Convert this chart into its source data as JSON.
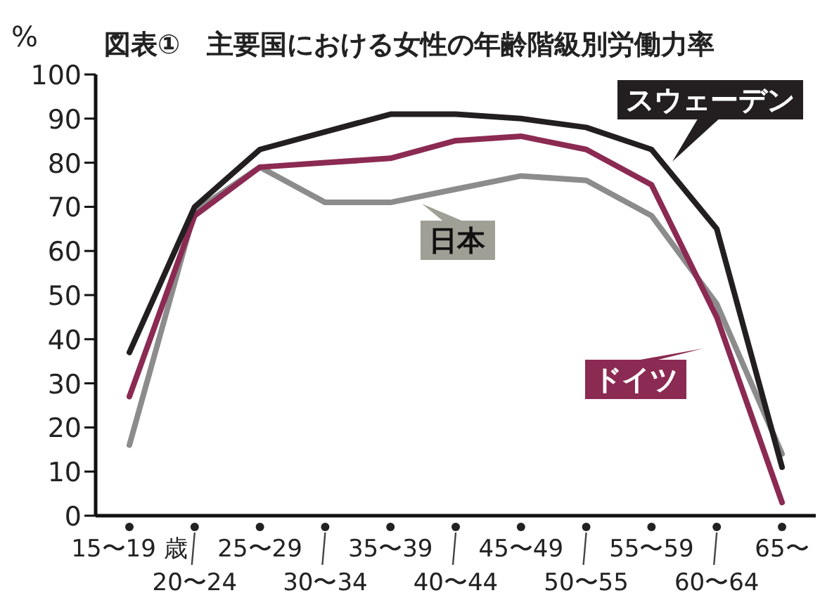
{
  "chart_data": {
    "type": "line",
    "title": "図表①　主要国における女性の年齢階級別労働力率",
    "ylabel": "%",
    "categories": [
      "15〜19 歳",
      "20〜24",
      "25〜29",
      "30〜34",
      "35〜39",
      "40〜44",
      "45〜49",
      "50〜55",
      "55〜59",
      "60〜64",
      "65〜"
    ],
    "ylim": [
      0,
      100
    ],
    "yticks": [
      0,
      10,
      20,
      30,
      40,
      50,
      60,
      70,
      80,
      90,
      100
    ],
    "grid": false,
    "marker": "none",
    "series": [
      {
        "name": "日本",
        "color": "#8c8c8c",
        "values": [
          16,
          69,
          79,
          71,
          71,
          74,
          77,
          76,
          68,
          48,
          14
        ]
      },
      {
        "name": "ドイツ",
        "color": "#8b2a52",
        "values": [
          27,
          68,
          79,
          80,
          81,
          85,
          86,
          83,
          75,
          45,
          3
        ]
      },
      {
        "name": "スウェーデン",
        "color": "#231f20",
        "values": [
          37,
          70,
          83,
          87,
          91,
          91,
          90,
          88,
          83,
          65,
          11
        ]
      }
    ]
  }
}
